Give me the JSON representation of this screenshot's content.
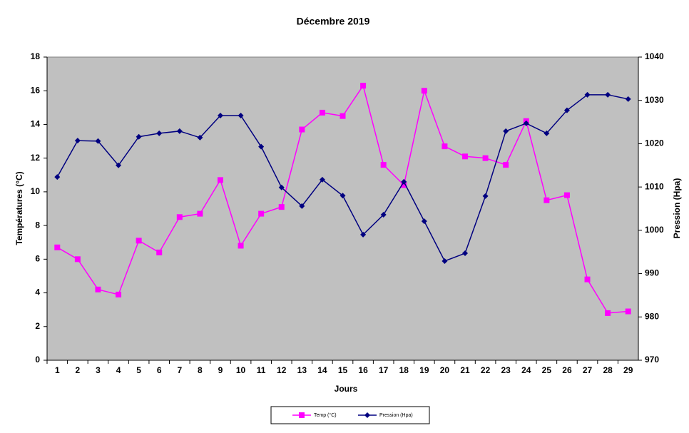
{
  "chart_data": {
    "type": "line",
    "title": "Décembre 2019",
    "x_label": "Jours",
    "y_label": "Températures (°C)",
    "y2_label": "Pression (Hpa)",
    "categories": [
      "1",
      "2",
      "3",
      "4",
      "5",
      "6",
      "7",
      "8",
      "9",
      "10",
      "11",
      "12",
      "13",
      "14",
      "15",
      "16",
      "17",
      "18",
      "19",
      "20",
      "21",
      "22",
      "23",
      "24",
      "25",
      "26",
      "27",
      "28",
      "29"
    ],
    "series": [
      {
        "name": "Temp (°C)",
        "color": "#ff00ff",
        "marker": "square",
        "values": [
          6.7,
          6.0,
          4.2,
          3.9,
          7.1,
          6.4,
          8.5,
          8.7,
          10.7,
          6.8,
          8.7,
          9.1,
          13.7,
          14.7,
          14.5,
          16.3,
          11.6,
          10.4,
          16.0,
          12.7,
          12.1,
          12.0,
          11.6,
          14.2,
          9.5,
          9.8,
          4.8,
          2.8,
          2.9
        ]
      },
      {
        "name": "Pression (Hpa)",
        "color": "#000080",
        "marker": "diamond",
        "axis": "y2",
        "values": [
          1012.3,
          1020.7,
          1020.6,
          1015.0,
          1021.6,
          1022.4,
          1022.9,
          1021.4,
          1026.5,
          1026.5,
          1019.3,
          1009.9,
          1005.6,
          1011.7,
          1008.0,
          999.0,
          1003.6,
          1011.2,
          1002.1,
          992.9,
          994.7,
          1007.9,
          1022.9,
          1024.7,
          1022.4,
          1027.7,
          1031.3,
          1031.3,
          1030.3
        ]
      }
    ],
    "ylim": [
      0,
      18
    ],
    "yticks": [
      0,
      2,
      4,
      6,
      8,
      10,
      12,
      14,
      16,
      18
    ],
    "y2lim": [
      970,
      1040
    ],
    "y2ticks": [
      970,
      980,
      990,
      1000,
      1010,
      1020,
      1030,
      1040
    ],
    "plot_background": "#c0c0c0",
    "grid": false,
    "legend_position": "bottom"
  }
}
